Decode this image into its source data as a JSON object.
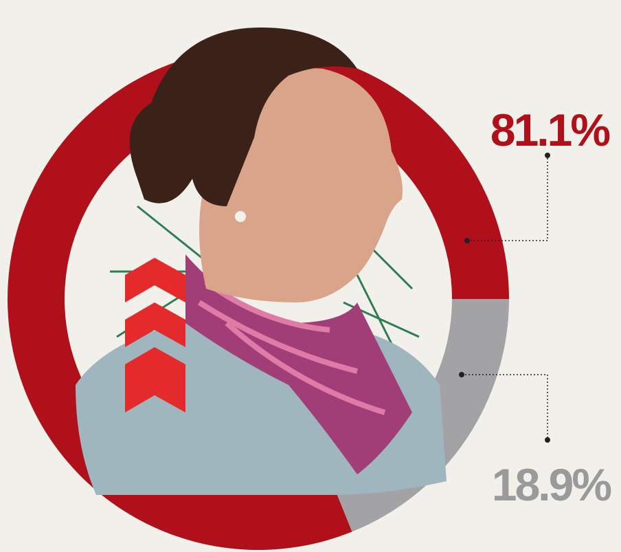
{
  "chart_data": {
    "type": "donut",
    "categories": [
      null,
      null
    ],
    "values": [
      81.1,
      18.9
    ],
    "value_labels": [
      "81.1%",
      "18.9%"
    ],
    "colors": [
      "#b0101a",
      "#a3a3a5"
    ],
    "label_colors": [
      "#b0101a",
      "#9a9a9a"
    ]
  }
}
